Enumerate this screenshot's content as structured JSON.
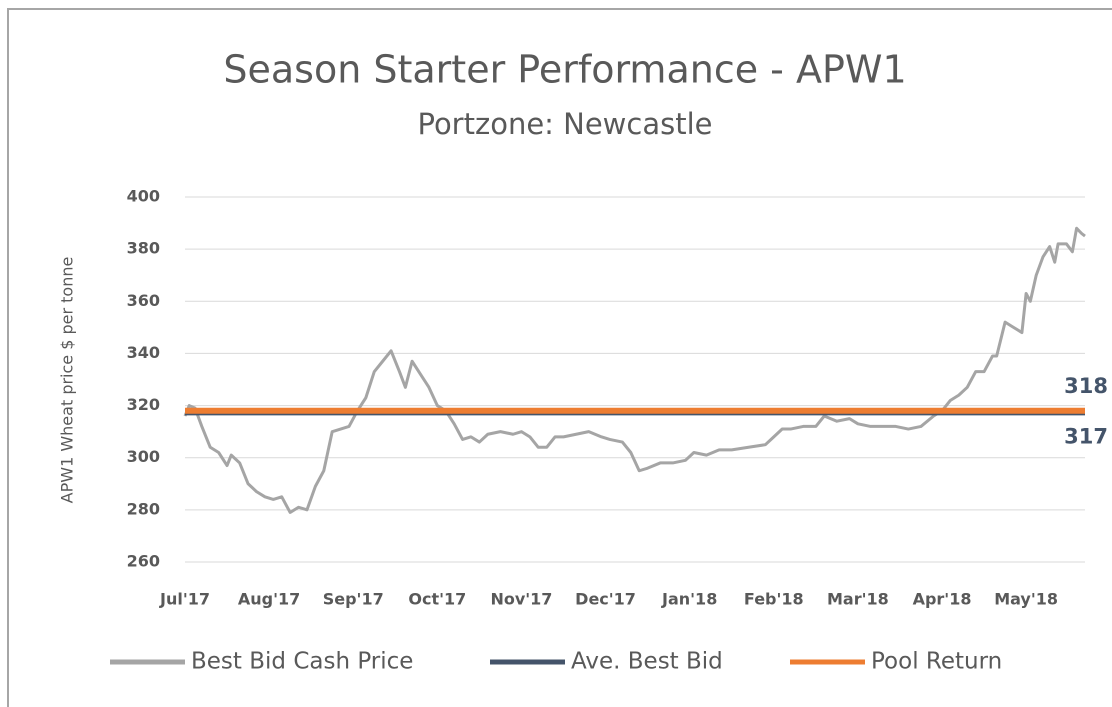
{
  "chart_data": {
    "type": "line",
    "title": "Season Starter Performance - APW1",
    "subtitle": "Portzone: Newcastle",
    "y_label": "APW1 Wheat price $ per tonne",
    "xlim": [
      0,
      10.7
    ],
    "xticks": [
      {
        "value": 0,
        "label": "Jul'17"
      },
      {
        "value": 1,
        "label": "Aug'17"
      },
      {
        "value": 2,
        "label": "Sep'17"
      },
      {
        "value": 3,
        "label": "Oct'17"
      },
      {
        "value": 4,
        "label": "Nov'17"
      },
      {
        "value": 5,
        "label": "Dec'17"
      },
      {
        "value": 6,
        "label": "Jan'18"
      },
      {
        "value": 7,
        "label": "Feb'18"
      },
      {
        "value": 8,
        "label": "Mar'18"
      },
      {
        "value": 9,
        "label": "Apr'18"
      },
      {
        "value": 10,
        "label": "May'18"
      }
    ],
    "ylim": [
      260,
      400
    ],
    "yticks": [
      260,
      280,
      300,
      320,
      340,
      360,
      380,
      400
    ],
    "grid": true,
    "legend": "bottom",
    "series": [
      {
        "name": "Best Bid Cash Price",
        "color": "#a5a5a5",
        "width": 3,
        "x": [
          0,
          0.05,
          0.12,
          0.2,
          0.3,
          0.4,
          0.5,
          0.55,
          0.65,
          0.75,
          0.85,
          0.95,
          1.05,
          1.15,
          1.25,
          1.35,
          1.45,
          1.55,
          1.65,
          1.75,
          1.85,
          1.95,
          2.05,
          2.15,
          2.25,
          2.35,
          2.45,
          2.55,
          2.62,
          2.7,
          2.8,
          2.9,
          3.0,
          3.1,
          3.2,
          3.3,
          3.4,
          3.5,
          3.6,
          3.75,
          3.9,
          4.0,
          4.1,
          4.2,
          4.3,
          4.4,
          4.5,
          4.65,
          4.8,
          4.95,
          5.05,
          5.2,
          5.3,
          5.4,
          5.5,
          5.65,
          5.8,
          5.95,
          6.05,
          6.2,
          6.35,
          6.5,
          6.7,
          6.9,
          7.0,
          7.1,
          7.2,
          7.35,
          7.5,
          7.6,
          7.75,
          7.9,
          8.0,
          8.15,
          8.3,
          8.45,
          8.6,
          8.75,
          8.9,
          9.0,
          9.1,
          9.2,
          9.3,
          9.4,
          9.5,
          9.6,
          9.65,
          9.75,
          9.85,
          9.95,
          10.0,
          10.05,
          10.12,
          10.2,
          10.28,
          10.34,
          10.38,
          10.48,
          10.55,
          10.6,
          10.66,
          10.7
        ],
        "values": [
          316,
          320,
          319,
          312,
          304,
          302,
          297,
          301,
          298,
          290,
          287,
          285,
          284,
          285,
          279,
          281,
          280,
          289,
          295,
          310,
          311,
          312,
          318,
          323,
          333,
          337,
          341,
          333,
          327,
          337,
          332,
          327,
          320,
          318,
          313,
          307,
          308,
          306,
          309,
          310,
          309,
          310,
          308,
          304,
          304,
          308,
          308,
          309,
          310,
          308,
          307,
          306,
          302,
          295,
          296,
          298,
          298,
          299,
          302,
          301,
          303,
          303,
          304,
          305,
          308,
          311,
          311,
          312,
          312,
          316,
          314,
          315,
          313,
          312,
          312,
          312,
          311,
          312,
          316,
          318,
          322,
          324,
          327,
          333,
          333,
          339,
          339,
          352,
          350,
          348,
          363,
          360,
          370,
          377,
          381,
          375,
          382,
          382,
          379,
          388,
          386,
          385
        ]
      },
      {
        "name": "Ave. Best Bid",
        "color": "#44546a",
        "width": 4,
        "x": [
          0,
          10.7
        ],
        "values": [
          317,
          317
        ],
        "label_color": "#44546a"
      },
      {
        "name": "Pool Return",
        "color": "#ed7d31",
        "width": 6,
        "x": [
          0,
          10.7
        ],
        "values": [
          318,
          318
        ],
        "label_color": "#44546a"
      }
    ]
  }
}
